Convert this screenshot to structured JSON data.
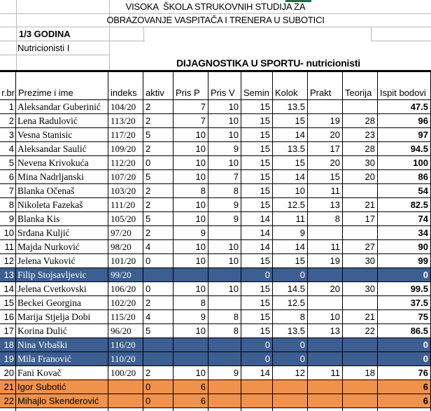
{
  "header": {
    "school_line1": "VISOKA  ŠKOLA STRUKOVNIH STUDIJA ZA",
    "school_line2": "OBRAZOVANJE VASPITAČA I TRENERA U SUBOTICI",
    "year": "1/3 GODINA",
    "group": "Nutricionisti I",
    "course_title": "DIJAGNOSTIKA U SPORTU- nutricionisti"
  },
  "colors": {
    "row_blue": "#3C5E90",
    "row_orange": "#F0924B",
    "green_fragment": "#1E7145",
    "grid_border": "#000000",
    "light_gridline": "#b9b9b9"
  },
  "table": {
    "columns": [
      "r.br",
      "Prezime i ime",
      "indeks",
      "aktiv",
      "Pris P",
      "Pris V",
      "Semin",
      "Kolok",
      "Prakt",
      "Teorija",
      "Ispit bodovi"
    ],
    "rows": [
      {
        "num": "1",
        "name": "Aleksandar Guberinić",
        "indeks": "104/20",
        "aktiv": "2",
        "pris_p": "7",
        "pris_v": "10",
        "semin": "15",
        "kolok": "13.5",
        "prakt": "",
        "teorija": "",
        "ispit": "47.5",
        "highlight": "none",
        "name_font": "serif"
      },
      {
        "num": "2",
        "name": "Lena Radulović",
        "indeks": "113/20",
        "aktiv": "2",
        "pris_p": "7",
        "pris_v": "10",
        "semin": "15",
        "kolok": "15",
        "prakt": "19",
        "teorija": "28",
        "ispit": "96",
        "highlight": "none",
        "name_font": "serif"
      },
      {
        "num": "3",
        "name": "Vesna Stanisic",
        "indeks": "117/20",
        "aktiv": "5",
        "pris_p": "10",
        "pris_v": "10",
        "semin": "15",
        "kolok": "14",
        "prakt": "20",
        "teorija": "23",
        "ispit": "97",
        "highlight": "none",
        "name_font": "serif"
      },
      {
        "num": "4",
        "name": "Aleksandar Saulić",
        "indeks": "109/20",
        "aktiv": "2",
        "pris_p": "10",
        "pris_v": "9",
        "semin": "15",
        "kolok": "13.5",
        "prakt": "17",
        "teorija": "28",
        "ispit": "94.5",
        "highlight": "none",
        "name_font": "serif"
      },
      {
        "num": "5",
        "name": "Nevena Krivokuća",
        "indeks": "112/20",
        "aktiv": "0",
        "pris_p": "10",
        "pris_v": "10",
        "semin": "15",
        "kolok": "15",
        "prakt": "20",
        "teorija": "30",
        "ispit": "100",
        "highlight": "none",
        "name_font": "serif"
      },
      {
        "num": "6",
        "name": "Mina Nadrljanski",
        "indeks": "107/20",
        "aktiv": "5",
        "pris_p": "10",
        "pris_v": "7",
        "semin": "15",
        "kolok": "14",
        "prakt": "15",
        "teorija": "20",
        "ispit": "86",
        "highlight": "none",
        "name_font": "serif"
      },
      {
        "num": "7",
        "name": "Blanka Očenaš",
        "indeks": "103/20",
        "aktiv": "2",
        "pris_p": "8",
        "pris_v": "8",
        "semin": "15",
        "kolok": "10",
        "prakt": "11",
        "teorija": "",
        "ispit": "54",
        "highlight": "none",
        "name_font": "serif"
      },
      {
        "num": "8",
        "name": "Nikoleta Fazekaš",
        "indeks": "111/20",
        "aktiv": "2",
        "pris_p": "10",
        "pris_v": "9",
        "semin": "15",
        "kolok": "12.5",
        "prakt": "13",
        "teorija": "21",
        "ispit": "82.5",
        "highlight": "none",
        "name_font": "serif"
      },
      {
        "num": "9",
        "name": "Blanka Kis",
        "indeks": "105/20",
        "aktiv": "5",
        "pris_p": "10",
        "pris_v": "9",
        "semin": "14",
        "kolok": "11",
        "prakt": "8",
        "teorija": "17",
        "ispit": "74",
        "highlight": "none",
        "name_font": "serif"
      },
      {
        "num": "10",
        "name": "Srđana Kuljić",
        "indeks": "97/20",
        "aktiv": "2",
        "pris_p": "9",
        "pris_v": "",
        "semin": "14",
        "kolok": "9",
        "prakt": "",
        "teorija": "",
        "ispit": "34",
        "highlight": "none",
        "name_font": "serif"
      },
      {
        "num": "11",
        "name": "Majda Nurković",
        "indeks": "98/20",
        "aktiv": "4",
        "pris_p": "10",
        "pris_v": "10",
        "semin": "14",
        "kolok": "14",
        "prakt": "11",
        "teorija": "27",
        "ispit": "90",
        "highlight": "none",
        "name_font": "serif"
      },
      {
        "num": "12",
        "name": "Jelena Vuković",
        "indeks": "101/20",
        "aktiv": "0",
        "pris_p": "10",
        "pris_v": "10",
        "semin": "15",
        "kolok": "15",
        "prakt": "19",
        "teorija": "30",
        "ispit": "99",
        "highlight": "none",
        "name_font": "serif"
      },
      {
        "num": "13",
        "name": "Filip Stojsavljevic",
        "indeks": "99/20",
        "aktiv": "",
        "pris_p": "",
        "pris_v": "",
        "semin": "0",
        "kolok": "0",
        "prakt": "",
        "teorija": "",
        "ispit": "0",
        "highlight": "blue",
        "name_font": "serif"
      },
      {
        "num": "14",
        "name": "Jelena Cvetkovski",
        "indeks": "106/20",
        "aktiv": "0",
        "pris_p": "10",
        "pris_v": "10",
        "semin": "15",
        "kolok": "14.5",
        "prakt": "20",
        "teorija": "30",
        "ispit": "99.5",
        "highlight": "none",
        "name_font": "serif"
      },
      {
        "num": "15",
        "name": "Beckei Georgina",
        "indeks": "102/20",
        "aktiv": "2",
        "pris_p": "8",
        "pris_v": "",
        "semin": "15",
        "kolok": "12.5",
        "prakt": "",
        "teorija": "",
        "ispit": "37.5",
        "highlight": "none",
        "name_font": "serif"
      },
      {
        "num": "16",
        "name": "Marija Stjelja Dobi",
        "indeks": "115/20",
        "aktiv": "4",
        "pris_p": "9",
        "pris_v": "8",
        "semin": "15",
        "kolok": "8",
        "prakt": "10",
        "teorija": "21",
        "ispit": "75",
        "highlight": "none",
        "name_font": "serif"
      },
      {
        "num": "17",
        "name": "Korina Dulić",
        "indeks": "96/20",
        "aktiv": "5",
        "pris_p": "10",
        "pris_v": "8",
        "semin": "15",
        "kolok": "13.5",
        "prakt": "13",
        "teorija": "22",
        "ispit": "86.5",
        "highlight": "none",
        "name_font": "serif"
      },
      {
        "num": "18",
        "name": "Nina Vrbaški",
        "indeks": "116/20",
        "aktiv": "",
        "pris_p": "",
        "pris_v": "",
        "semin": "0",
        "kolok": "0",
        "prakt": "",
        "teorija": "",
        "ispit": "0",
        "highlight": "blue",
        "name_font": "serif"
      },
      {
        "num": "19",
        "name": "Mila Franović",
        "indeks": "110/20",
        "aktiv": "",
        "pris_p": "",
        "pris_v": "",
        "semin": "0",
        "kolok": "0",
        "prakt": "",
        "teorija": "",
        "ispit": "0",
        "highlight": "blue",
        "name_font": "serif"
      },
      {
        "num": "20",
        "name": "Fani Kovač",
        "indeks": "100/20",
        "aktiv": "2",
        "pris_p": "10",
        "pris_v": "9",
        "semin": "14",
        "kolok": "12",
        "prakt": "11",
        "teorija": "18",
        "ispit": "76",
        "highlight": "none",
        "name_font": "serif"
      },
      {
        "num": "21",
        "name": "Igor Subotić",
        "indeks": "",
        "aktiv": "0",
        "pris_p": "6",
        "pris_v": "",
        "semin": "",
        "kolok": "",
        "prakt": "",
        "teorija": "",
        "ispit": "6",
        "highlight": "orange",
        "name_font": "sans"
      },
      {
        "num": "22",
        "name": "Mihajlo Skenderović",
        "indeks": "",
        "aktiv": "0",
        "pris_p": "6",
        "pris_v": "",
        "semin": "",
        "kolok": "",
        "prakt": "",
        "teorija": "",
        "ispit": "6",
        "highlight": "orange",
        "name_font": "sans"
      }
    ]
  }
}
